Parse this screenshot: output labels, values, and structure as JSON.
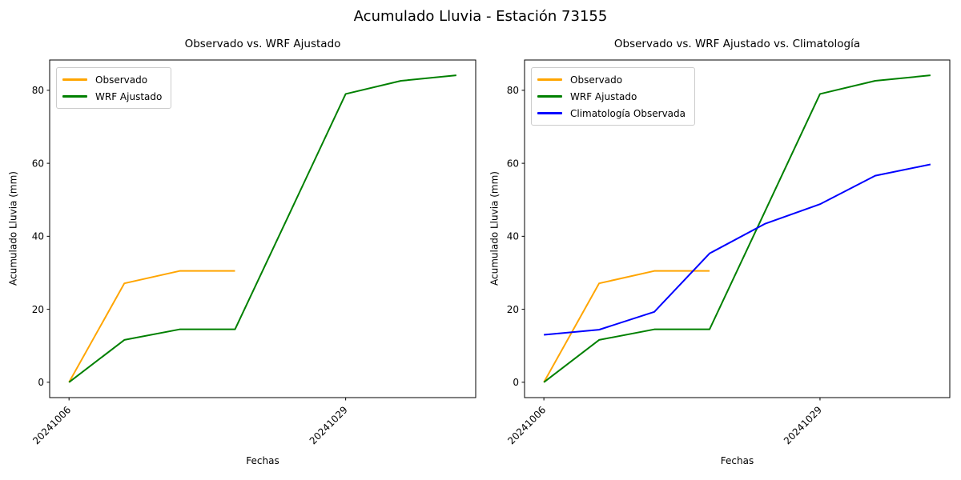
{
  "figure": {
    "title": "Acumulado Lluvia - Estación 73155",
    "background": "#ffffff"
  },
  "chart_data": [
    {
      "type": "line",
      "title": "Observado vs. WRF Ajustado",
      "xlabel": "Fechas",
      "ylabel": "Acumulado Lluvia (mm)",
      "x_point_count": 8,
      "x_ticks": [
        {
          "index": 0,
          "label": "20241006"
        },
        {
          "index": 5,
          "label": "20241029"
        }
      ],
      "y_ticks": [
        0,
        20,
        40,
        60,
        80
      ],
      "ylim": [
        0,
        84.1
      ],
      "grid": false,
      "legend_position": "upper left",
      "series": [
        {
          "name": "Observado",
          "color": "#FFA500",
          "values": [
            0,
            27.1,
            30.5,
            30.5
          ]
        },
        {
          "name": "WRF Ajustado",
          "color": "#008000",
          "values": [
            0,
            11.6,
            14.5,
            14.5,
            46.7,
            79.0,
            82.6,
            84.1
          ]
        }
      ]
    },
    {
      "type": "line",
      "title": "Observado vs. WRF Ajustado vs. Climatología",
      "xlabel": "Fechas",
      "ylabel": "Acumulado Lluvia (mm)",
      "x_point_count": 8,
      "x_ticks": [
        {
          "index": 0,
          "label": "20241006"
        },
        {
          "index": 5,
          "label": "20241029"
        }
      ],
      "y_ticks": [
        0,
        20,
        40,
        60,
        80
      ],
      "ylim": [
        0,
        84.1
      ],
      "grid": false,
      "legend_position": "upper left",
      "series": [
        {
          "name": "Observado",
          "color": "#FFA500",
          "values": [
            0,
            27.1,
            30.5,
            30.5
          ]
        },
        {
          "name": "WRF Ajustado",
          "color": "#008000",
          "values": [
            0,
            11.6,
            14.5,
            14.5,
            46.7,
            79.0,
            82.6,
            84.1
          ]
        },
        {
          "name": "Climatología Observada",
          "color": "#0000FF",
          "values": [
            13.0,
            14.4,
            19.3,
            35.3,
            43.4,
            48.8,
            56.6,
            59.7
          ]
        }
      ]
    }
  ]
}
